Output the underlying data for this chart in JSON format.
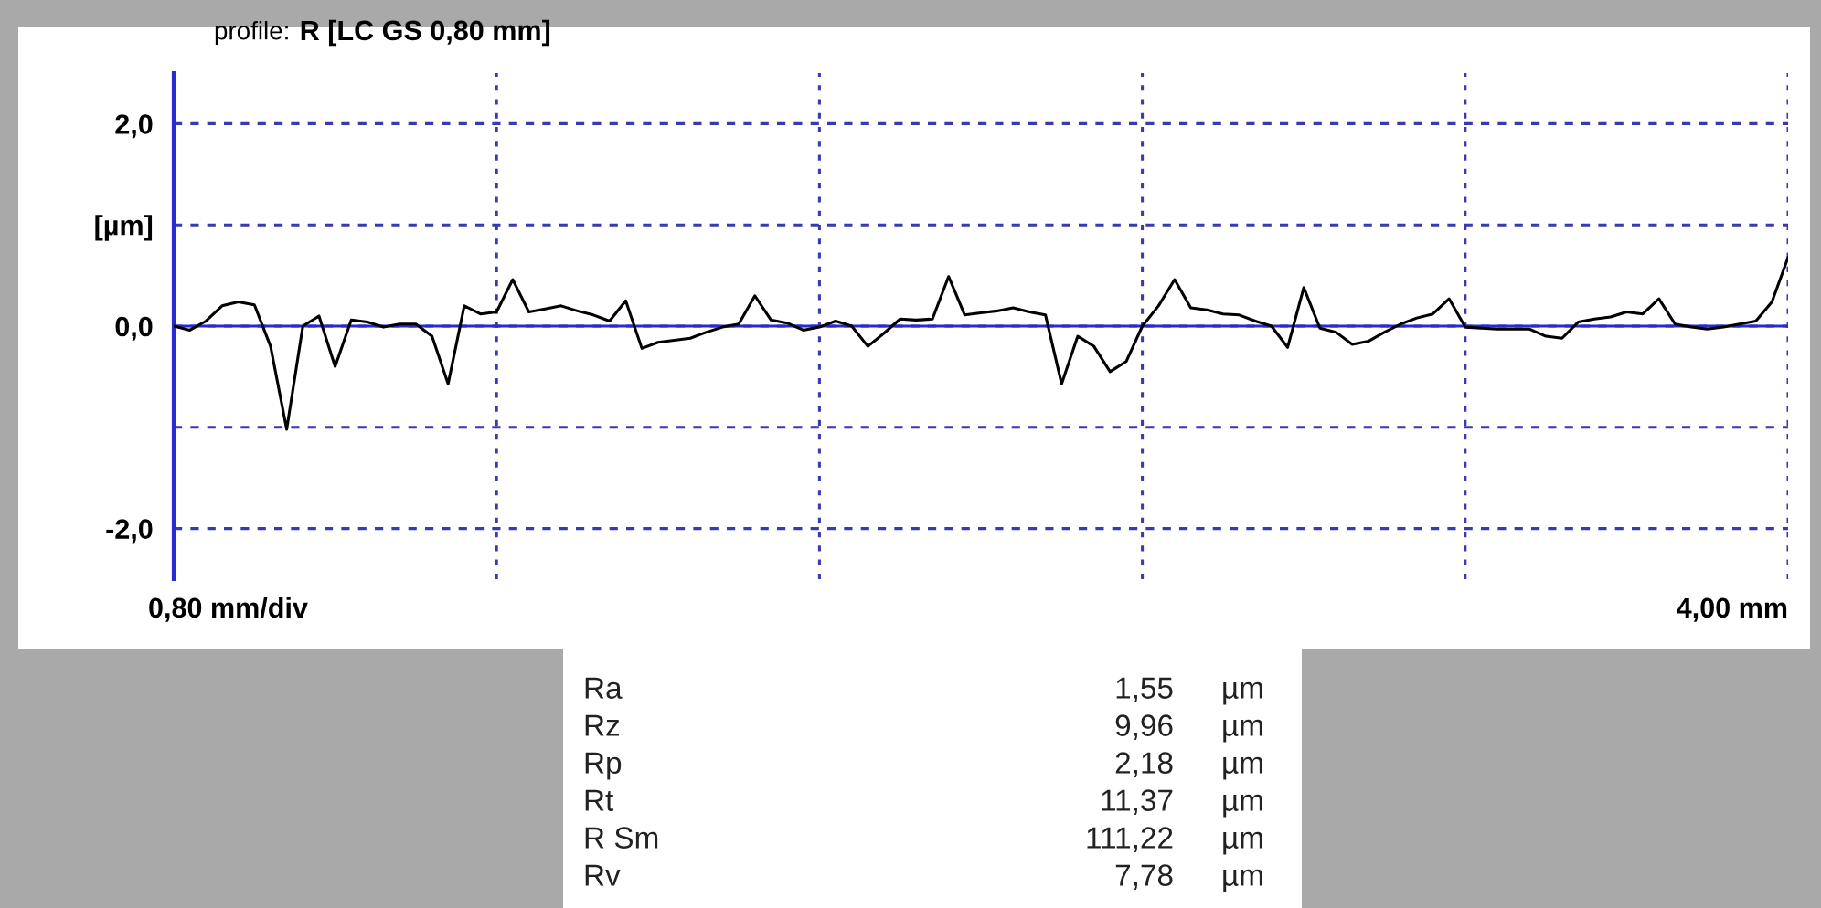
{
  "chart_data": {
    "type": "line",
    "title": "R [LC GS 0,80 mm]",
    "subtitle": "profile:",
    "tick_labels": "y",
    "categories": [
      null,
      null,
      null,
      null,
      null,
      null,
      null,
      null,
      null,
      null,
      null,
      null,
      null,
      null,
      null,
      null,
      null,
      null,
      null,
      null,
      null,
      null,
      null,
      null,
      null,
      null,
      null,
      null,
      null,
      null,
      null,
      null,
      null,
      null,
      null,
      null,
      null,
      null,
      null,
      null,
      null,
      null,
      null,
      null,
      null,
      null,
      null,
      null,
      null,
      null,
      null,
      null,
      null,
      null,
      null,
      null,
      null,
      null,
      null,
      null,
      null,
      null,
      null,
      null,
      null,
      null,
      null,
      null,
      null,
      null,
      null,
      null,
      null,
      null,
      null,
      null,
      null,
      null,
      null,
      null,
      null,
      null,
      null,
      null,
      null,
      null,
      null,
      null,
      null,
      null,
      null,
      null,
      null,
      null,
      null,
      null,
      null,
      null,
      null,
      null,
      null
    ],
    "series": [
      {
        "color": "#000000",
        "values": [
          0,
          -0.04,
          0.05,
          0.2,
          0.24,
          0.21,
          -0.2,
          -1.02,
          0,
          0.1,
          -0.4,
          0.06,
          0.04,
          -0.01,
          0.02,
          0.02,
          -0.1,
          -0.57,
          0.2,
          0.12,
          0.14,
          0.46,
          0.14,
          0.17,
          0.2,
          0.15,
          0.11,
          0.05,
          0.25,
          -0.22,
          -0.16,
          -0.14,
          -0.12,
          -0.06,
          -0.01,
          0.02,
          0.3,
          0.06,
          0.03,
          -0.04,
          -0.01,
          0.05,
          0,
          -0.2,
          -0.07,
          0.07,
          0.06,
          0.07,
          0.49,
          0.11,
          0.13,
          0.15,
          0.18,
          0.14,
          0.11,
          -0.57,
          -0.1,
          -0.2,
          -0.45,
          -0.35,
          0,
          0.2,
          0.46,
          0.18,
          0.16,
          0.12,
          0.11,
          0.05,
          0,
          -0.21,
          0.38,
          -0.02,
          -0.06,
          -0.18,
          -0.15,
          -0.06,
          0.02,
          0.08,
          0.12,
          0.27,
          -0.01,
          -0.02,
          -0.03,
          -0.03,
          -0.03,
          -0.1,
          -0.12,
          0.04,
          0.07,
          0.09,
          0.14,
          0.12,
          0.27,
          0.02,
          -0.01,
          -0.03,
          -0.01,
          0.02,
          0.05,
          0.24,
          0.68
        ]
      }
    ],
    "ylim": [
      -2.5,
      2.5
    ],
    "yticks": [
      {
        "value": -2,
        "label": "-2,0"
      },
      {
        "value": -1,
        "label": null
      },
      {
        "value": 0,
        "label": "0,0"
      },
      {
        "value": 1,
        "label": "[µm]"
      },
      {
        "value": 2,
        "label": "2,0"
      }
    ],
    "grid": true,
    "line_style": "solid",
    "ref_lines": [
      {
        "axis": "y",
        "value": 0,
        "color": "#2a2ad4",
        "line_style": "solid"
      }
    ],
    "annotations": [
      "0,80 mm/div",
      "4,00 mm",
      "Ra 1,55 µm",
      "Rz 9,96 µm",
      "Rp 2,18 µm",
      "Rt 11,37 µm",
      "R Sm 111,22 µm",
      "Rv 7,78 µm"
    ]
  }
}
